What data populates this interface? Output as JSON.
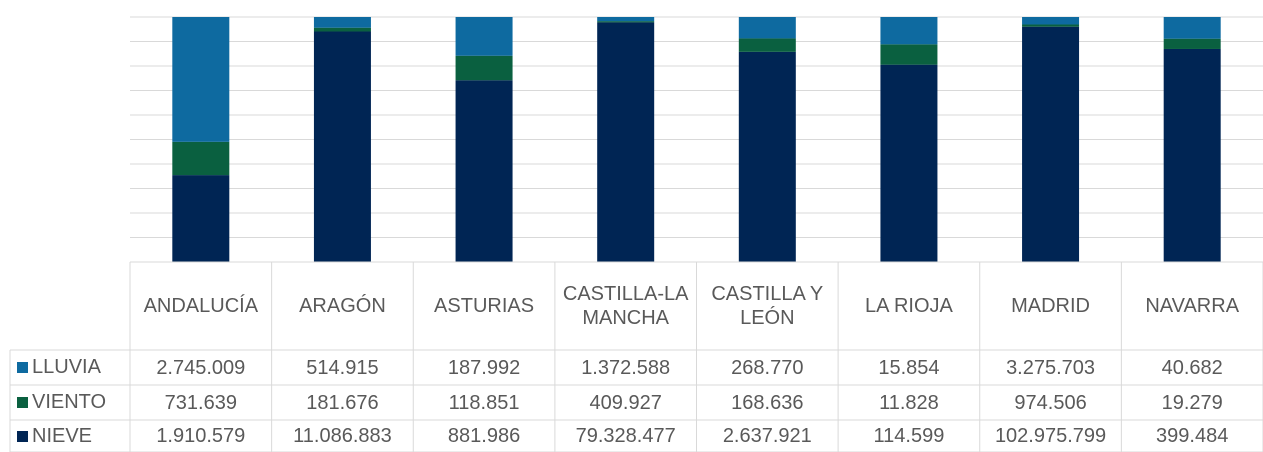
{
  "chart_data": {
    "type": "stacked_percent_bar",
    "categories": [
      "ANDALUCÍA",
      "ARAGÓN",
      "ASTURIAS",
      "CASTILLA-LA MANCHA",
      "CASTILLA Y LEÓN",
      "LA RIOJA",
      "MADRID",
      "NAVARRA"
    ],
    "series": [
      {
        "name": "LLUVIA",
        "color": "#0e6aa0",
        "values": [
          2745009,
          514915,
          187992,
          1372588,
          268770,
          15854,
          3275703,
          40682
        ],
        "value_labels": [
          "2.745.009",
          "514.915",
          "187.992",
          "1.372.588",
          "268.770",
          "15.854",
          "3.275.703",
          "40.682"
        ]
      },
      {
        "name": "VIENTO",
        "color": "#0a6040",
        "values": [
          731639,
          181676,
          118851,
          409927,
          168636,
          11828,
          974506,
          19279
        ],
        "value_labels": [
          "731.639",
          "181.676",
          "118.851",
          "409.927",
          "168.636",
          "11.828",
          "974.506",
          "19.279"
        ]
      },
      {
        "name": "NIEVE",
        "color": "#002554",
        "values": [
          1910579,
          11086883,
          881986,
          79328477,
          2637921,
          114599,
          102975799,
          399484
        ],
        "value_labels": [
          "1.910.579",
          "11.086.883",
          "881.986",
          "79.328.477",
          "2.637.921",
          "114.599",
          "102.975.799",
          "399.484"
        ]
      }
    ],
    "ylim": [
      0,
      100
    ],
    "yticks": [
      0,
      10,
      20,
      30,
      40,
      50,
      60,
      70,
      80,
      90,
      100
    ],
    "grid": true
  }
}
